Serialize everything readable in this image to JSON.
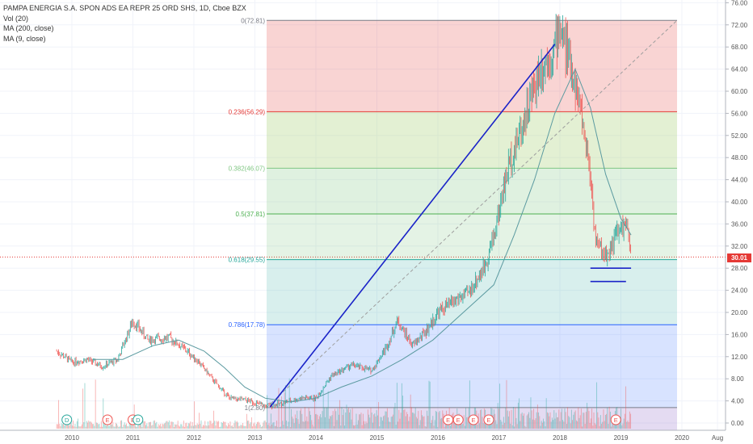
{
  "legend": {
    "title": "PAMPA ENERGIA S.A. SPON ADS EA REPR 25 ORD SHS, 1D, Cboe BZX",
    "vol": "Vol (20)",
    "ma200": "MA (200, close)",
    "ma9": "MA (9, close)"
  },
  "current_price": "30.01",
  "chart_data": {
    "type": "candlestick",
    "title": "PAMPA ENERGIA S.A. SPON ADS EA REPR 25 ORD SHS, 1D, Cboe BZX",
    "x_tick_labels": [
      "2010",
      "2011",
      "2012",
      "2013",
      "2014",
      "2015",
      "2016",
      "2017",
      "2018",
      "2019",
      "2020",
      "Aug"
    ],
    "y_tick_labels": [
      "0.00",
      "4.00",
      "8.00",
      "12.00",
      "16.00",
      "20.00",
      "24.00",
      "28.00",
      "32.00",
      "36.00",
      "40.00",
      "44.00",
      "48.00",
      "52.00",
      "56.00",
      "60.00",
      "64.00",
      "68.00",
      "72.00",
      "76.00"
    ],
    "ylim": [
      0,
      76
    ],
    "fibonacci": [
      {
        "label": "0(72.81)",
        "value": 72.81,
        "color": "#787b86"
      },
      {
        "label": "0.236(56.29)",
        "value": 56.29,
        "color": "#e53935"
      },
      {
        "label": "0.382(46.07)",
        "value": 46.07,
        "color": "#81c784"
      },
      {
        "label": "0.5(37.81)",
        "value": 37.81,
        "color": "#4caf50"
      },
      {
        "label": "0.618(29.55)",
        "value": 29.55,
        "color": "#26a69a"
      },
      {
        "label": "0.786(17.78)",
        "value": 17.78,
        "color": "#2962ff"
      },
      {
        "label": "1(2.80)",
        "value": 2.8,
        "color": "#787b86"
      }
    ],
    "price_path": [
      [
        "2009-10",
        13.0
      ],
      [
        "2010-01",
        11.0
      ],
      [
        "2010-04",
        11.5
      ],
      [
        "2010-07",
        10.2
      ],
      [
        "2010-10",
        11.5
      ],
      [
        "2011-01",
        18.5
      ],
      [
        "2011-04",
        15.0
      ],
      [
        "2011-08",
        15.5
      ],
      [
        "2011-11",
        13.5
      ],
      [
        "2012-02",
        11.0
      ],
      [
        "2012-05",
        7.5
      ],
      [
        "2012-08",
        4.5
      ],
      [
        "2012-12",
        4.0
      ],
      [
        "2013-03",
        3.0
      ],
      [
        "2013-06",
        3.5
      ],
      [
        "2013-10",
        4.5
      ],
      [
        "2014-01",
        4.5
      ],
      [
        "2014-04",
        8.5
      ],
      [
        "2014-08",
        10.5
      ],
      [
        "2014-12",
        9.5
      ],
      [
        "2015-03",
        14.0
      ],
      [
        "2015-05",
        18.5
      ],
      [
        "2015-08",
        14.0
      ],
      [
        "2015-11",
        17.0
      ],
      [
        "2016-01",
        20.0
      ],
      [
        "2016-04",
        22.0
      ],
      [
        "2016-07",
        23.5
      ],
      [
        "2016-10",
        28.0
      ],
      [
        "2016-12",
        34.0
      ],
      [
        "2017-03",
        47.0
      ],
      [
        "2017-06",
        55.0
      ],
      [
        "2017-09",
        64.0
      ],
      [
        "2017-12",
        68.0
      ],
      [
        "2018-01",
        72.0
      ],
      [
        "2018-03",
        65.0
      ],
      [
        "2018-05",
        57.0
      ],
      [
        "2018-07",
        45.0
      ],
      [
        "2018-08",
        33.0
      ],
      [
        "2018-10",
        30.0
      ],
      [
        "2018-12",
        34.0
      ],
      [
        "2019-02",
        36.0
      ],
      [
        "2019-03",
        30.01
      ]
    ],
    "series": [
      {
        "name": "MA (200, close)",
        "values": [
          [
            "2010-05",
            11.5
          ],
          [
            "2010-11",
            11.5
          ],
          [
            "2011-05",
            14.0
          ],
          [
            "2011-10",
            15.0
          ],
          [
            "2012-03",
            13.0
          ],
          [
            "2012-07",
            10.0
          ],
          [
            "2012-11",
            6.5
          ],
          [
            "2013-03",
            4.5
          ],
          [
            "2013-08",
            3.8
          ],
          [
            "2014-01",
            4.5
          ],
          [
            "2014-06",
            6.5
          ],
          [
            "2014-12",
            8.5
          ],
          [
            "2015-06",
            11.5
          ],
          [
            "2015-12",
            15.0
          ],
          [
            "2016-06",
            20.0
          ],
          [
            "2016-12",
            25.0
          ],
          [
            "2017-04",
            34.0
          ],
          [
            "2017-08",
            44.0
          ],
          [
            "2017-12",
            56.0
          ],
          [
            "2018-04",
            64.0
          ],
          [
            "2018-07",
            57.0
          ],
          [
            "2018-10",
            45.0
          ],
          [
            "2019-01",
            37.0
          ],
          [
            "2019-03",
            34.0
          ]
        ]
      }
    ],
    "earnings_markers": [
      {
        "label": "D",
        "date": "2009-12"
      },
      {
        "label": "E",
        "date": "2010-08"
      },
      {
        "label": "E",
        "date": "2011-01"
      },
      {
        "label": "D",
        "date": "2011-02"
      },
      {
        "label": "E",
        "date": "2016-03"
      },
      {
        "label": "E",
        "date": "2016-05"
      },
      {
        "label": "E",
        "date": "2016-08"
      },
      {
        "label": "E",
        "date": "2016-11"
      },
      {
        "label": "E",
        "date": "2018-12"
      }
    ],
    "current_price": 30.01
  }
}
